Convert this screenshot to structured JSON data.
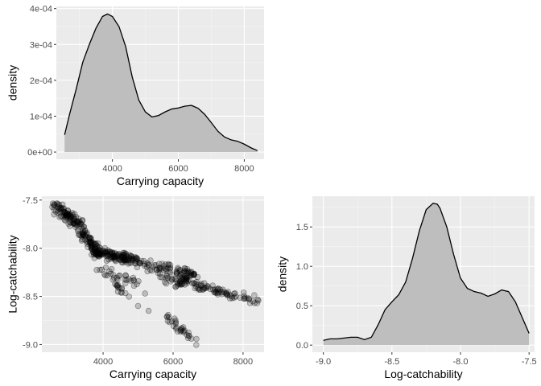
{
  "colors": {
    "panel_bg": "#ebebeb",
    "grid_major": "#ffffff",
    "grid_minor": "#f5f5f5",
    "fill": "#bebebe",
    "line": "#000000",
    "point_fill": "rgba(0,0,0,0.2)",
    "point_stroke": "rgba(0,0,0,0.45)"
  },
  "chart_data": [
    {
      "id": "density-k",
      "type": "area",
      "xlabel": "Carrying capacity",
      "ylabel": "density",
      "xlim": [
        2300,
        8600
      ],
      "ylim": [
        -2e-05,
        0.000406
      ],
      "xticks": [
        4000,
        6000,
        8000
      ],
      "xtick_labels": [
        "4000",
        "6000",
        "8000"
      ],
      "yticks": [
        0,
        0.0001,
        0.0002,
        0.0003,
        0.0004
      ],
      "ytick_labels": [
        "0e+00",
        "1e-04",
        "2e-04",
        "3e-04",
        "4e-04"
      ],
      "x": [
        2550,
        2700,
        2900,
        3100,
        3300,
        3500,
        3700,
        3850,
        4000,
        4200,
        4400,
        4600,
        4800,
        5000,
        5200,
        5400,
        5600,
        5800,
        6000,
        6200,
        6400,
        6600,
        6800,
        7000,
        7200,
        7400,
        7600,
        7800,
        8000,
        8200,
        8400
      ],
      "y": [
        4.8e-05,
        0.000105,
        0.000175,
        0.00025,
        0.0003,
        0.000345,
        0.000378,
        0.000385,
        0.000378,
        0.00035,
        0.000295,
        0.00021,
        0.000145,
        0.000112,
        9.8e-05,
        0.000102,
        0.000112,
        0.00012,
        0.000123,
        0.000128,
        0.00013,
        0.000122,
        0.000105,
        8.2e-05,
        5.8e-05,
        4.2e-05,
        3.4e-05,
        3e-05,
        2.2e-05,
        1.2e-05,
        4e-06
      ],
      "grid": true
    },
    {
      "id": "scatter",
      "type": "scatter",
      "xlabel": "Carrying capacity",
      "ylabel": "Log-catchability",
      "xlim": [
        2250,
        8600
      ],
      "ylim": [
        -9.08,
        -7.46
      ],
      "xticks": [
        4000,
        6000,
        8000
      ],
      "xtick_labels": [
        "4000",
        "6000",
        "8000"
      ],
      "yticks": [
        -7.5,
        -8.0,
        -8.5,
        -9.0
      ],
      "ytick_labels": [
        "-7.5",
        "-8.0",
        "-8.5",
        "-9.0"
      ],
      "clusters": [
        {
          "from": [
            2550,
            -7.55
          ],
          "to": [
            3350,
            -7.75
          ],
          "count": 90,
          "spread": [
            110,
            0.05
          ]
        },
        {
          "from": [
            3300,
            -7.8
          ],
          "to": [
            3900,
            -8.05
          ],
          "count": 90,
          "spread": [
            110,
            0.06
          ]
        },
        {
          "from": [
            3800,
            -8.05
          ],
          "to": [
            4900,
            -8.12
          ],
          "count": 120,
          "spread": [
            170,
            0.05
          ]
        },
        {
          "from": [
            4900,
            -8.15
          ],
          "to": [
            6700,
            -8.28
          ],
          "count": 90,
          "spread": [
            260,
            0.05
          ]
        },
        {
          "from": [
            3800,
            -8.22
          ],
          "to": [
            5000,
            -8.35
          ],
          "count": 30,
          "spread": [
            160,
            0.06
          ]
        },
        {
          "from": [
            5700,
            -8.3
          ],
          "to": [
            7000,
            -8.42
          ],
          "count": 60,
          "spread": [
            220,
            0.05
          ]
        },
        {
          "from": [
            6800,
            -8.4
          ],
          "to": [
            8350,
            -8.55
          ],
          "count": 55,
          "spread": [
            220,
            0.04
          ]
        },
        {
          "from": [
            4300,
            -8.38
          ],
          "to": [
            4700,
            -8.48
          ],
          "count": 14,
          "spread": [
            120,
            0.04
          ]
        },
        {
          "from": [
            5750,
            -8.7
          ],
          "to": [
            6700,
            -8.98
          ],
          "count": 32,
          "spread": [
            120,
            0.04
          ]
        }
      ],
      "extra_points": [
        [
          5000,
          -8.6
        ],
        [
          5300,
          -8.65
        ],
        [
          5200,
          -8.47
        ],
        [
          4950,
          -8.1
        ],
        [
          8400,
          -8.57
        ],
        [
          8200,
          -8.57
        ],
        [
          2600,
          -7.6
        ],
        [
          2600,
          -7.65
        ],
        [
          5050,
          -8.15
        ],
        [
          3050,
          -7.77
        ]
      ],
      "grid": true
    },
    {
      "id": "density-q",
      "type": "area",
      "xlabel": "Log-catchability",
      "ylabel": "density",
      "xlim": [
        -9.08,
        -7.46
      ],
      "ylim": [
        -0.09,
        1.89
      ],
      "xticks": [
        -9.0,
        -8.5,
        -8.0,
        -7.5
      ],
      "xtick_labels": [
        "-9.0",
        "-8.5",
        "-8.0",
        "-7.5"
      ],
      "yticks": [
        0,
        0.5,
        1.0,
        1.5
      ],
      "ytick_labels": [
        "0.0",
        "0.5",
        "1.0",
        "1.5"
      ],
      "x": [
        -9.0,
        -8.95,
        -8.9,
        -8.85,
        -8.8,
        -8.75,
        -8.7,
        -8.65,
        -8.6,
        -8.55,
        -8.5,
        -8.45,
        -8.4,
        -8.35,
        -8.3,
        -8.25,
        -8.2,
        -8.17,
        -8.15,
        -8.1,
        -8.05,
        -8.0,
        -7.95,
        -7.9,
        -7.85,
        -7.8,
        -7.75,
        -7.7,
        -7.65,
        -7.6,
        -7.55,
        -7.5
      ],
      "y": [
        0.06,
        0.08,
        0.08,
        0.09,
        0.1,
        0.1,
        0.07,
        0.1,
        0.26,
        0.45,
        0.55,
        0.64,
        0.8,
        1.1,
        1.45,
        1.72,
        1.8,
        1.79,
        1.74,
        1.5,
        1.15,
        0.85,
        0.72,
        0.68,
        0.66,
        0.62,
        0.65,
        0.7,
        0.68,
        0.55,
        0.35,
        0.15
      ],
      "grid": true
    }
  ]
}
